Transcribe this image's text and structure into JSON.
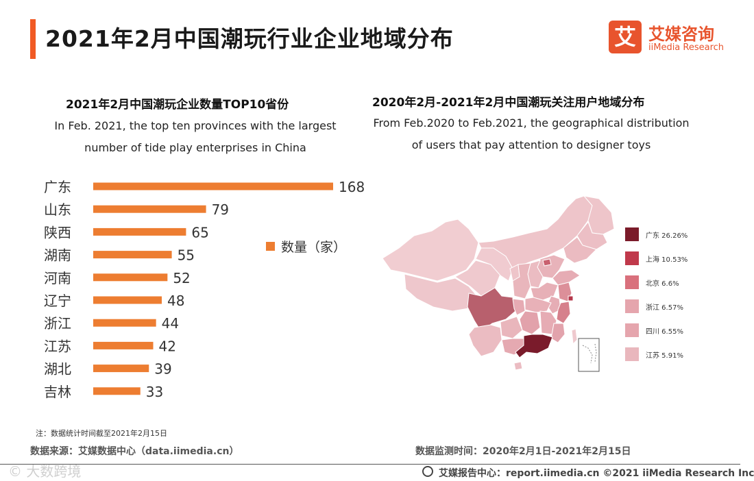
{
  "header": {
    "title": "2021年2月中国潮玩行业企业地域分布",
    "logo_mark": "艾",
    "logo_cn": "艾媒咨询",
    "logo_en": "iiMedia Research"
  },
  "left_chart": {
    "title_cn": "2021年2月中国潮玩企业数量TOP10省份",
    "title_en_line1": "In Feb. 2021, the top ten provinces with the largest",
    "title_en_line2": "number of tide play enterprises in China",
    "legend": "数量（家）"
  },
  "right_chart": {
    "title_cn": "2020年2月-2021年2月中国潮玩关注用户地域分布",
    "title_en_line1": "From Feb.2020 to Feb.2021,  the geographical distribution",
    "title_en_line2": "of users that pay attention to designer toys",
    "legend": [
      {
        "label": "广东  26.26%",
        "color": "#7b1b2a"
      },
      {
        "label": "上海  10.53%",
        "color": "#c0394b"
      },
      {
        "label": "北京  6.6%",
        "color": "#d9707c"
      },
      {
        "label": "浙江  6.57%",
        "color": "#e5a5ad"
      },
      {
        "label": "四川  6.55%",
        "color": "#e5a5ad"
      },
      {
        "label": "江苏  5.91%",
        "color": "#e9b7bd"
      }
    ]
  },
  "chart_data": [
    {
      "type": "bar",
      "orientation": "horizontal",
      "title": "2021年2月中国潮玩企业数量TOP10省份",
      "categories": [
        "广东",
        "山东",
        "陕西",
        "湖南",
        "河南",
        "辽宁",
        "浙江",
        "江苏",
        "湖北",
        "吉林"
      ],
      "series": [
        {
          "name": "数量（家）",
          "values": [
            168,
            79,
            65,
            55,
            52,
            48,
            44,
            42,
            39,
            33
          ]
        }
      ],
      "color": "#ed7d31",
      "grid": false,
      "legend_position": "right"
    },
    {
      "type": "map",
      "title": "2020年2月-2021年2月中国潮玩关注用户地域分布",
      "categories": [
        "广东",
        "上海",
        "北京",
        "浙江",
        "四川",
        "江苏"
      ],
      "values": [
        26.26,
        10.53,
        6.6,
        6.57,
        6.55,
        5.91
      ],
      "unit": "%"
    }
  ],
  "footer": {
    "note": "注：数据统计时间截至2021年2月15日",
    "source": "数据来源：艾媒数据中心（data.iimedia.cn）",
    "monitor": "数据监测时间：2020年2月1日-2021年2月15日",
    "watermark": "© 大数跨境",
    "copyright": "艾媒报告中心：report.iimedia.cn   ©2021  iiMedia Research  Inc"
  }
}
